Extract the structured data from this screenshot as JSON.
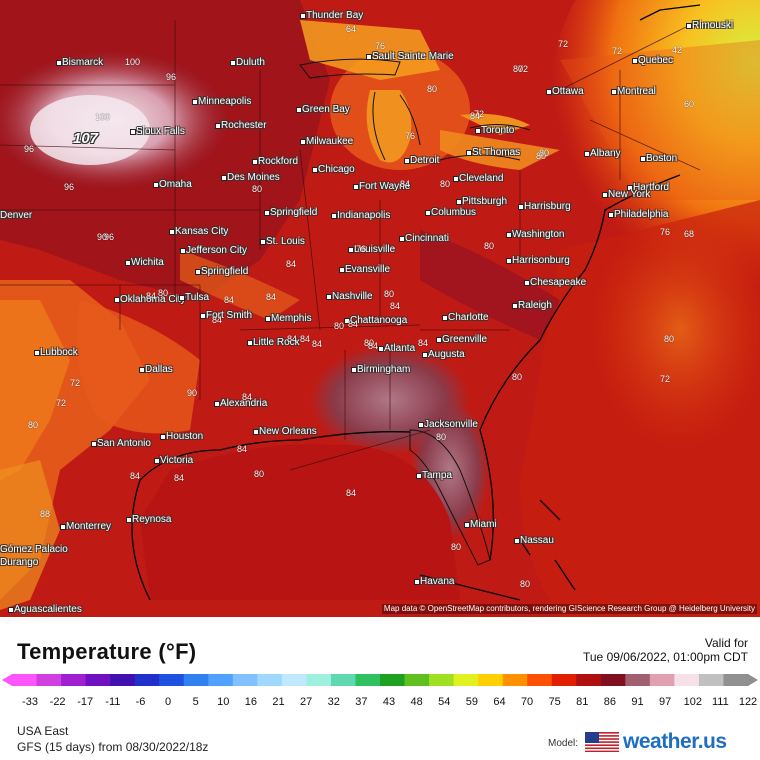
{
  "legend": {
    "title": "Temperature (°F)",
    "valid_label": "Valid for",
    "valid_time": "Tue 09/06/2022, 01:00pm CDT",
    "ticks": [
      "-33",
      "-22",
      "-17",
      "-11",
      "-6",
      "0",
      "5",
      "10",
      "16",
      "21",
      "27",
      "32",
      "37",
      "43",
      "48",
      "54",
      "59",
      "64",
      "70",
      "75",
      "81",
      "86",
      "91",
      "97",
      "102",
      "111",
      "122"
    ],
    "colors": [
      "#ff55ff",
      "#d040e0",
      "#a020d0",
      "#7010c0",
      "#4010b0",
      "#2030c8",
      "#2050e0",
      "#3080f0",
      "#50a0ff",
      "#80c0ff",
      "#a0d8ff",
      "#c0e8ff",
      "#a0f0e0",
      "#60d8b0",
      "#30c060",
      "#20a020",
      "#60c020",
      "#a0e020",
      "#e0f020",
      "#ffd000",
      "#ff9000",
      "#ff5000",
      "#e02000",
      "#b01010",
      "#801020",
      "#a06070",
      "#e0a0b0",
      "#f8e0e8",
      "#c0c0c0",
      "#909090"
    ],
    "region": "USA East",
    "model_run": "GFS (15 days) from 08/30/2022/18z",
    "model_label": "Model:",
    "brand": "weather.us",
    "credits": "Map data © OpenStreetMap contributors, rendering GIScience Research Group @ Heidelberg University"
  },
  "map": {
    "max_value": "107",
    "cities": [
      {
        "name": "Thunder Bay"
      },
      {
        "name": "Rimouski"
      },
      {
        "name": "Bismarck"
      },
      {
        "name": "Duluth"
      },
      {
        "name": "Sault Sainte Marie"
      },
      {
        "name": "Quebec"
      },
      {
        "name": "Ottawa"
      },
      {
        "name": "Montreal"
      },
      {
        "name": "Minneapolis"
      },
      {
        "name": "Green Bay"
      },
      {
        "name": "Rochester"
      },
      {
        "name": "Toronto"
      },
      {
        "name": "Sioux Falls"
      },
      {
        "name": "Milwaukee"
      },
      {
        "name": "St Thomas"
      },
      {
        "name": "Albany"
      },
      {
        "name": "Boston"
      },
      {
        "name": "Rockford"
      },
      {
        "name": "Chicago"
      },
      {
        "name": "Detroit"
      },
      {
        "name": "Des Moines"
      },
      {
        "name": "Omaha"
      },
      {
        "name": "Cleveland"
      },
      {
        "name": "Hartford"
      },
      {
        "name": "Fort Wayne"
      },
      {
        "name": "New York"
      },
      {
        "name": "Springfield"
      },
      {
        "name": "Indianapolis"
      },
      {
        "name": "Columbus"
      },
      {
        "name": "Pittsburgh"
      },
      {
        "name": "Harrisburg"
      },
      {
        "name": "Philadelphia"
      },
      {
        "name": "Kansas City"
      },
      {
        "name": "Jefferson City"
      },
      {
        "name": "St. Louis"
      },
      {
        "name": "Cincinnati"
      },
      {
        "name": "Washington"
      },
      {
        "name": "Louisville"
      },
      {
        "name": "Wichita"
      },
      {
        "name": "Springfield"
      },
      {
        "name": "Evansville"
      },
      {
        "name": "Harrisonburg"
      },
      {
        "name": "Chesapeake"
      },
      {
        "name": "Nashville"
      },
      {
        "name": "Oklahoma City"
      },
      {
        "name": "Tulsa"
      },
      {
        "name": "Raleigh"
      },
      {
        "name": "Fort Smith"
      },
      {
        "name": "Memphis"
      },
      {
        "name": "Chattanooga"
      },
      {
        "name": "Charlotte"
      },
      {
        "name": "Greenville"
      },
      {
        "name": "Little Rock"
      },
      {
        "name": "Atlanta"
      },
      {
        "name": "Augusta"
      },
      {
        "name": "Lubbock"
      },
      {
        "name": "Birmingham"
      },
      {
        "name": "Dallas"
      },
      {
        "name": "Alexandria"
      },
      {
        "name": "New Orleans"
      },
      {
        "name": "Jacksonville"
      },
      {
        "name": "San Antonio"
      },
      {
        "name": "Houston"
      },
      {
        "name": "Victoria"
      },
      {
        "name": "Tampa"
      },
      {
        "name": "Reynosa"
      },
      {
        "name": "Monterrey"
      },
      {
        "name": "Miami"
      },
      {
        "name": "Nassau"
      },
      {
        "name": "Gómez Palacio"
      },
      {
        "name": "Durango"
      },
      {
        "name": "Havana"
      },
      {
        "name": "Aguascalientes"
      },
      {
        "name": "Denver"
      }
    ],
    "isolines": [
      "64",
      "76",
      "72",
      "72",
      "42",
      "96",
      "100",
      "100",
      "96",
      "96",
      "96",
      "90",
      "72",
      "80",
      "84",
      "80",
      "76",
      "80",
      "84",
      "80",
      "80",
      "80",
      "76",
      "72",
      "80",
      "76",
      "80",
      "80",
      "80",
      "84",
      "84",
      "84",
      "84",
      "84",
      "84",
      "90",
      "80",
      "72",
      "72",
      "80",
      "84",
      "84",
      "80",
      "84",
      "84",
      "84",
      "84",
      "84",
      "72",
      "80",
      "80",
      "80",
      "80",
      "80",
      "84",
      "84",
      "84",
      "84",
      "60",
      "68",
      "88"
    ]
  }
}
